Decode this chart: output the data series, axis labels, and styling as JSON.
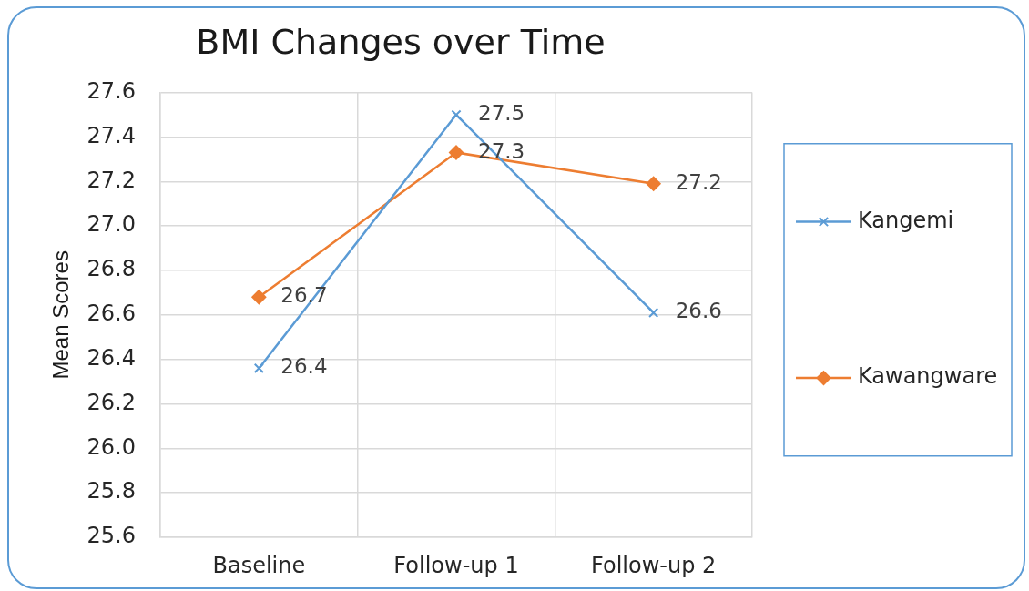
{
  "chart_data": {
    "type": "line",
    "title": "BMI Changes over Time",
    "ylabel": "Mean Scores",
    "categories": [
      "Baseline",
      "Follow-up 1",
      "Follow-up 2"
    ],
    "series": [
      {
        "name": "Kangemi",
        "color": "#5b9bd5",
        "marker": "cross",
        "values": [
          26.36,
          27.5,
          26.61
        ],
        "value_labels": [
          "26.4",
          "27.5",
          "26.6"
        ]
      },
      {
        "name": "Kawangware",
        "color": "#ed7d31",
        "marker": "diamond",
        "values": [
          26.68,
          27.33,
          27.19
        ],
        "value_labels": [
          "26.7",
          "27.3",
          "27.2"
        ]
      }
    ],
    "ylim": [
      25.6,
      27.6
    ],
    "yticks": [
      25.6,
      25.8,
      {
        "value": 26,
        "label": "26.0"
      },
      26.2,
      26.4,
      26.6,
      26.8,
      {
        "value": 27,
        "label": "27.0"
      },
      27.2,
      27.4,
      27.6
    ],
    "grid": true,
    "legend": "right",
    "line_style": "solid"
  }
}
